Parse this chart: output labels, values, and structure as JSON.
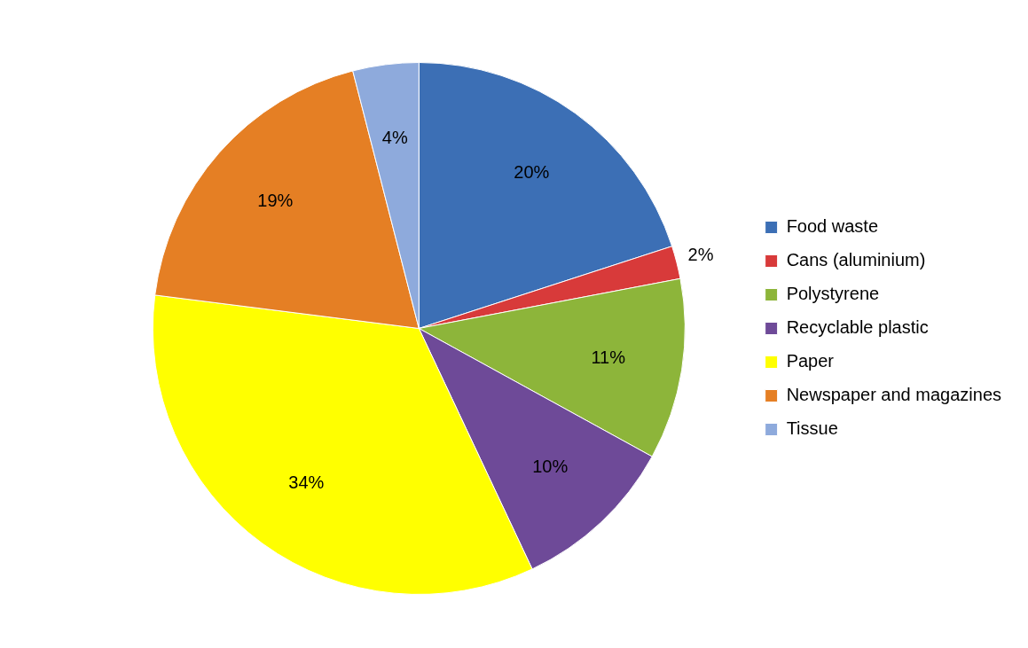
{
  "chart_data": {
    "type": "pie",
    "categories": [
      "Food waste",
      "Cans (aluminium)",
      "Polystyrene",
      "Recyclable plastic",
      "Paper",
      "Newspaper and magazines",
      "Tissue"
    ],
    "values": [
      20,
      2,
      11,
      10,
      34,
      19,
      4
    ],
    "colors": [
      "#3c6fb5",
      "#d83a3a",
      "#8db53a",
      "#6e4a98",
      "#ffff00",
      "#e57f24",
      "#8eaadc"
    ],
    "value_labels": [
      "20%",
      "2%",
      "11%",
      "10%",
      "34%",
      "19%",
      "4%"
    ],
    "legend": "right"
  }
}
